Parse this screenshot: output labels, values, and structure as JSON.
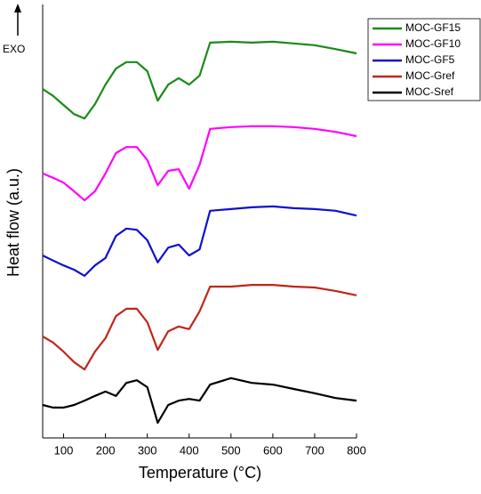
{
  "chart_data": {
    "type": "line",
    "x_label": "Temperature (°C)",
    "y_label": "Heat flow (a.u.)",
    "annotation": "EXO",
    "x": [
      50,
      75,
      100,
      125,
      150,
      175,
      200,
      225,
      250,
      275,
      300,
      325,
      350,
      375,
      400,
      425,
      450,
      500,
      550,
      600,
      650,
      700,
      750,
      800
    ],
    "series": [
      {
        "name": "MOC-GF15",
        "color": "#1a8a1a",
        "values": [
          80.5,
          78.9,
          76.8,
          74.7,
          73.7,
          77.0,
          81.5,
          85.2,
          86.7,
          86.7,
          84.6,
          77.8,
          81.5,
          83.0,
          81.5,
          83.6,
          91.2,
          91.4,
          91.2,
          91.4,
          91.0,
          90.6,
          89.7,
          88.7
        ]
      },
      {
        "name": "MOC-GF10",
        "color": "#ff00ff",
        "values": [
          61.0,
          60.0,
          58.9,
          56.9,
          54.8,
          56.9,
          61.0,
          65.7,
          67.1,
          67.1,
          64.1,
          58.3,
          61.6,
          62.0,
          57.5,
          63.0,
          71.3,
          71.7,
          71.9,
          71.9,
          71.7,
          71.3,
          70.6,
          69.6
        ]
      },
      {
        "name": "MOC-GF5",
        "color": "#1010d0",
        "values": [
          42.1,
          40.9,
          39.8,
          38.8,
          37.4,
          39.8,
          41.5,
          46.6,
          48.3,
          48.0,
          45.6,
          40.5,
          43.9,
          44.6,
          42.1,
          43.5,
          52.4,
          52.8,
          53.2,
          53.4,
          53.0,
          52.8,
          52.4,
          51.3
        ]
      },
      {
        "name": "MOC-Gref",
        "color": "#c0261a",
        "values": [
          23.4,
          22.0,
          19.9,
          17.5,
          15.8,
          19.9,
          23.0,
          28.1,
          29.8,
          29.8,
          26.7,
          20.3,
          24.6,
          25.7,
          25.1,
          29.2,
          34.9,
          34.9,
          35.3,
          35.3,
          34.9,
          34.7,
          33.9,
          32.9
        ]
      },
      {
        "name": "MOC-Sref",
        "color": "#000000",
        "values": [
          7.6,
          7.0,
          7.0,
          7.6,
          8.6,
          9.7,
          10.7,
          9.7,
          12.7,
          13.3,
          11.7,
          3.5,
          7.6,
          8.6,
          9.0,
          8.6,
          12.3,
          13.8,
          12.7,
          12.3,
          11.3,
          10.3,
          9.2,
          8.6
        ]
      }
    ],
    "xlim": [
      50,
      800
    ],
    "xticks": [
      100,
      200,
      300,
      400,
      500,
      600,
      700,
      800
    ],
    "ylim": [
      0,
      100
    ],
    "legend": "upper right"
  }
}
